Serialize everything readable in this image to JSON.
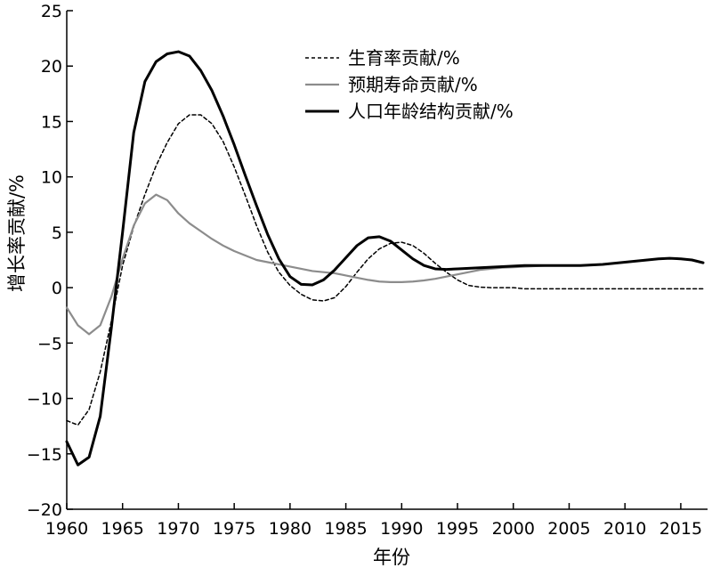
{
  "chart_data": {
    "type": "line",
    "xlabel": "年份",
    "ylabel": "增长率贡献/%",
    "xlim": [
      1960,
      2017
    ],
    "ylim": [
      -20,
      25
    ],
    "x_ticks": [
      1960,
      1965,
      1970,
      1975,
      1980,
      1985,
      1990,
      1995,
      2000,
      2005,
      2010,
      2015
    ],
    "y_ticks": [
      -20,
      -15,
      -10,
      -5,
      0,
      5,
      10,
      15,
      20,
      25
    ],
    "y_tick_labels": [
      "−20",
      "−15",
      "−10",
      "−5",
      "0",
      "5",
      "10",
      "15",
      "20",
      "25"
    ],
    "grid": false,
    "legend_position": "top-right",
    "x": [
      1960,
      1961,
      1962,
      1963,
      1964,
      1965,
      1966,
      1967,
      1968,
      1969,
      1970,
      1971,
      1972,
      1973,
      1974,
      1975,
      1976,
      1977,
      1978,
      1979,
      1980,
      1981,
      1982,
      1983,
      1984,
      1985,
      1986,
      1987,
      1988,
      1989,
      1990,
      1991,
      1992,
      1993,
      1994,
      1995,
      1996,
      1997,
      1998,
      1999,
      2000,
      2001,
      2002,
      2003,
      2004,
      2005,
      2006,
      2007,
      2008,
      2009,
      2010,
      2011,
      2012,
      2013,
      2014,
      2015,
      2016,
      2017
    ],
    "series": [
      {
        "name": "生育率贡献/%",
        "color": "#000000",
        "style": "dashed",
        "values": [
          -12,
          -12.4,
          -11,
          -7.6,
          -3,
          2,
          5.5,
          8.4,
          11,
          13.1,
          14.8,
          15.6,
          15.6,
          14.8,
          13.2,
          10.9,
          8.3,
          5.6,
          3.2,
          1.4,
          0.2,
          -0.6,
          -1.1,
          -1.2,
          -0.9,
          0.1,
          1.4,
          2.6,
          3.5,
          4,
          4.1,
          3.8,
          3.1,
          2.2,
          1.4,
          0.7,
          0.2,
          0.05,
          0,
          0,
          0,
          -0.1,
          -0.1,
          -0.1,
          -0.1,
          -0.1,
          -0.1,
          -0.1,
          -0.1,
          -0.1,
          -0.1,
          -0.1,
          -0.1,
          -0.1,
          -0.1,
          -0.1,
          -0.1,
          -0.1
        ]
      },
      {
        "name": "预期寿命贡献/%",
        "color": "#8c8c8c",
        "style": "solid",
        "values": [
          -1.8,
          -3.4,
          -4.2,
          -3.4,
          -0.8,
          2.6,
          5.6,
          7.6,
          8.4,
          7.9,
          6.7,
          5.8,
          5.1,
          4.4,
          3.8,
          3.3,
          2.9,
          2.5,
          2.3,
          2.1,
          1.9,
          1.7,
          1.5,
          1.4,
          1.3,
          1.1,
          0.9,
          0.7,
          0.55,
          0.5,
          0.5,
          0.55,
          0.65,
          0.8,
          1,
          1.2,
          1.4,
          1.6,
          1.7,
          1.8,
          1.85,
          1.9,
          1.95,
          2,
          2,
          2,
          2,
          2.05,
          2.1,
          2.2,
          2.3,
          2.4,
          2.5,
          2.6,
          2.65,
          2.6,
          2.5,
          2.25
        ]
      },
      {
        "name": "人口年龄结构贡献/%",
        "color": "#000000",
        "style": "solid",
        "values": [
          -13.9,
          -16,
          -15.3,
          -11.6,
          -3.6,
          5,
          14,
          18.6,
          20.4,
          21.1,
          21.3,
          20.9,
          19.6,
          17.8,
          15.5,
          12.9,
          10.1,
          7.4,
          4.8,
          2.6,
          1,
          0.3,
          0.25,
          0.7,
          1.6,
          2.7,
          3.8,
          4.5,
          4.6,
          4.2,
          3.4,
          2.6,
          2,
          1.7,
          1.65,
          1.7,
          1.75,
          1.8,
          1.85,
          1.9,
          1.95,
          2,
          2,
          2,
          2,
          2,
          2,
          2.05,
          2.1,
          2.2,
          2.3,
          2.4,
          2.5,
          2.6,
          2.65,
          2.6,
          2.5,
          2.25
        ]
      }
    ]
  }
}
